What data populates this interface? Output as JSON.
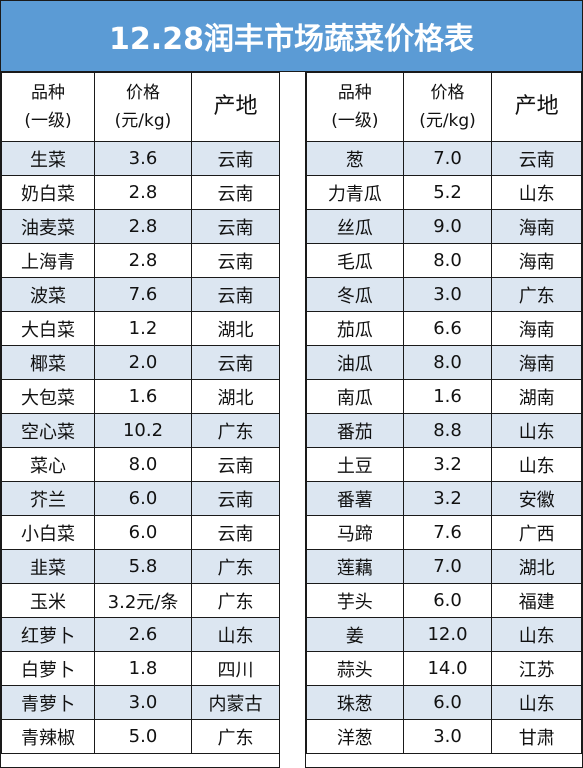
{
  "title": "12.28润丰市场蔬菜价格表",
  "colors": {
    "header_bg": "#5b9bd5",
    "alt_row_bg": "#dce6f1",
    "border": "#1a1a1a"
  },
  "headers": {
    "name_line1": "品种",
    "name_line2": "(一级)",
    "price_line1": "价格",
    "price_line2": "(元/kg)",
    "origin": "产地"
  },
  "left_rows": [
    {
      "name": "生菜",
      "price": "3.6",
      "origin": "云南"
    },
    {
      "name": "奶白菜",
      "price": "2.8",
      "origin": "云南"
    },
    {
      "name": "油麦菜",
      "price": "2.8",
      "origin": "云南"
    },
    {
      "name": "上海青",
      "price": "2.8",
      "origin": "云南"
    },
    {
      "name": "波菜",
      "price": "7.6",
      "origin": "云南"
    },
    {
      "name": "大白菜",
      "price": "1.2",
      "origin": "湖北"
    },
    {
      "name": "椰菜",
      "price": "2.0",
      "origin": "云南"
    },
    {
      "name": "大包菜",
      "price": "1.6",
      "origin": "湖北"
    },
    {
      "name": "空心菜",
      "price": "10.2",
      "origin": "广东"
    },
    {
      "name": "菜心",
      "price": "8.0",
      "origin": "云南"
    },
    {
      "name": "芥兰",
      "price": "6.0",
      "origin": "云南"
    },
    {
      "name": "小白菜",
      "price": "6.0",
      "origin": "云南"
    },
    {
      "name": "韭菜",
      "price": "5.8",
      "origin": "广东"
    },
    {
      "name": "玉米",
      "price": "3.2元/条",
      "origin": "广东"
    },
    {
      "name": "红萝卜",
      "price": "2.6",
      "origin": "山东"
    },
    {
      "name": "白萝卜",
      "price": "1.8",
      "origin": "四川"
    },
    {
      "name": "青萝卜",
      "price": "3.0",
      "origin": "内蒙古"
    },
    {
      "name": "青辣椒",
      "price": "5.0",
      "origin": "广东"
    }
  ],
  "right_rows": [
    {
      "name": "葱",
      "price": "7.0",
      "origin": "云南"
    },
    {
      "name": "力青瓜",
      "price": "5.2",
      "origin": "山东"
    },
    {
      "name": "丝瓜",
      "price": "9.0",
      "origin": "海南"
    },
    {
      "name": "毛瓜",
      "price": "8.0",
      "origin": "海南"
    },
    {
      "name": "冬瓜",
      "price": "3.0",
      "origin": "广东"
    },
    {
      "name": "茄瓜",
      "price": "6.6",
      "origin": "海南"
    },
    {
      "name": "油瓜",
      "price": "8.0",
      "origin": "海南"
    },
    {
      "name": "南瓜",
      "price": "1.6",
      "origin": "湖南"
    },
    {
      "name": "番茄",
      "price": "8.8",
      "origin": "山东"
    },
    {
      "name": "土豆",
      "price": "3.2",
      "origin": "山东"
    },
    {
      "name": "番薯",
      "price": "3.2",
      "origin": "安徽"
    },
    {
      "name": "马蹄",
      "price": "7.6",
      "origin": "广西"
    },
    {
      "name": "莲藕",
      "price": "7.0",
      "origin": "湖北"
    },
    {
      "name": "芋头",
      "price": "6.0",
      "origin": "福建"
    },
    {
      "name": "姜",
      "price": "12.0",
      "origin": "山东"
    },
    {
      "name": "蒜头",
      "price": "14.0",
      "origin": "江苏"
    },
    {
      "name": "珠葱",
      "price": "6.0",
      "origin": "山东"
    },
    {
      "name": "洋葱",
      "price": "3.0",
      "origin": "甘肃"
    }
  ]
}
